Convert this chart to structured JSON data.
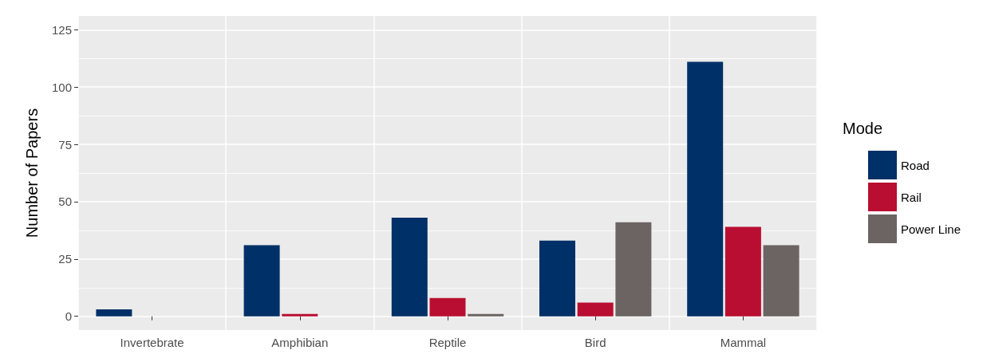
{
  "chart_data": {
    "type": "bar",
    "ylabel": "Number of Papers",
    "legend_title": "Mode",
    "categories": [
      "Invertebrate",
      "Amphibian",
      "Reptile",
      "Bird",
      "Mammal"
    ],
    "series": [
      {
        "name": "Road",
        "color": "#003068",
        "values": [
          3,
          31,
          43,
          33,
          111
        ]
      },
      {
        "name": "Rail",
        "color": "#b90e31",
        "values": [
          0,
          1,
          8,
          6,
          39
        ]
      },
      {
        "name": "Power Line",
        "color": "#6b6462",
        "values": [
          0,
          0,
          1,
          41,
          31
        ]
      }
    ],
    "ylim": [
      -6,
      131
    ],
    "yticks": [
      0,
      {
        "value": 12.5,
        "label": null
      },
      25,
      {
        "value": 37.5,
        "label": null
      },
      50,
      {
        "value": 62.5,
        "label": null
      },
      75,
      {
        "value": 87.5,
        "label": null
      },
      100,
      {
        "value": 112.5,
        "label": null
      },
      125
    ],
    "grid": true,
    "legend": "right"
  }
}
